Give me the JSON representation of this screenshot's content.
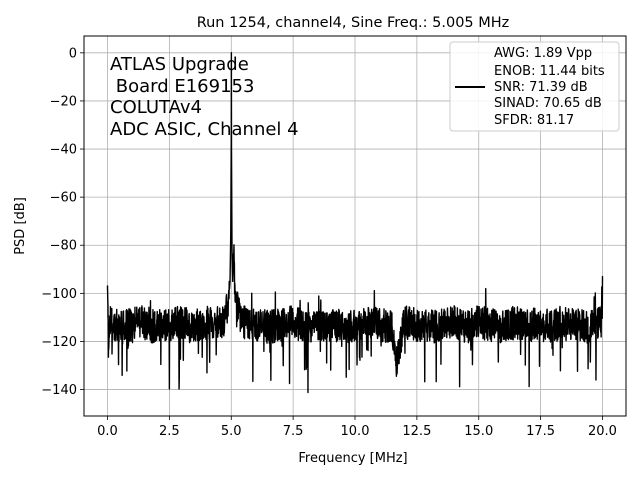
{
  "chart_data": {
    "type": "line",
    "title": "Run 1254, channel4, Sine Freq.: 5.005 MHz",
    "xlabel": "Frequency [MHz]",
    "ylabel": "PSD [dB]",
    "xlim": [
      -0.95,
      20.95
    ],
    "ylim": [
      -151,
      7
    ],
    "xticks": [
      0,
      2.5,
      5,
      7.5,
      10,
      12.5,
      15,
      17.5,
      20
    ],
    "xtick_labels": [
      "0.0",
      "2.5",
      "5.0",
      "7.5",
      "10.0",
      "12.5",
      "15.0",
      "17.5",
      "20.0"
    ],
    "yticks": [
      0,
      -20,
      -40,
      -60,
      -80,
      -100,
      -120,
      -140
    ],
    "ytick_labels": [
      "0",
      "−20",
      "−40",
      "−60",
      "−80",
      "−100",
      "−120",
      "−140"
    ],
    "grid": true,
    "line_color": "#000000",
    "annotation": [
      "ATLAS Upgrade",
      " Board E169153",
      "COLUTAv4",
      "ADC ASIC, Channel 4"
    ],
    "legend": {
      "placement": "upper right",
      "entries": [
        "AWG: 1.89 Vpp",
        "ENOB: 11.44 bits",
        "SNR: 71.39 dB",
        "SINAD: 70.65 dB",
        "SFDR: 81.17"
      ]
    },
    "series": [
      {
        "x": [
          0.0,
          0.02,
          0.04,
          0.1,
          0.3,
          0.6,
          1.0,
          1.4,
          1.8,
          2.2,
          2.6,
          3.0,
          3.4,
          3.8,
          4.2,
          4.5,
          4.7,
          4.8,
          4.9,
          4.95,
          4.98,
          5.0,
          5.005,
          5.01,
          5.03,
          5.06,
          5.1,
          5.15,
          5.2,
          5.3,
          5.5,
          6.0,
          6.5,
          7.0,
          7.5,
          8.0,
          8.5,
          9.0,
          9.5,
          10.0,
          10.5,
          11.0,
          11.5,
          11.65,
          12.0,
          12.5,
          13.0,
          13.5,
          14.0,
          14.5,
          15.0,
          15.5,
          16.0,
          16.5,
          17.0,
          17.5,
          18.0,
          18.5,
          19.0,
          19.5,
          19.95,
          20.0
        ],
        "y": [
          -97,
          -110,
          -122,
          -112,
          -113,
          -114,
          -113,
          -112,
          -114,
          -113,
          -113,
          -112,
          -114,
          -113,
          -112,
          -112,
          -111,
          -108,
          -102,
          -95,
          -75,
          -35,
          0,
          -40,
          -82,
          -95,
          -84,
          -98,
          -103,
          -108,
          -112,
          -113,
          -114,
          -113,
          -112,
          -114,
          -113,
          -113,
          -114,
          -113,
          -112,
          -113,
          -114,
          -130,
          -112,
          -113,
          -114,
          -113,
          -112,
          -114,
          -112,
          -113,
          -114,
          -112,
          -113,
          -113,
          -114,
          -112,
          -113,
          -114,
          -112,
          -93
        ]
      }
    ]
  }
}
